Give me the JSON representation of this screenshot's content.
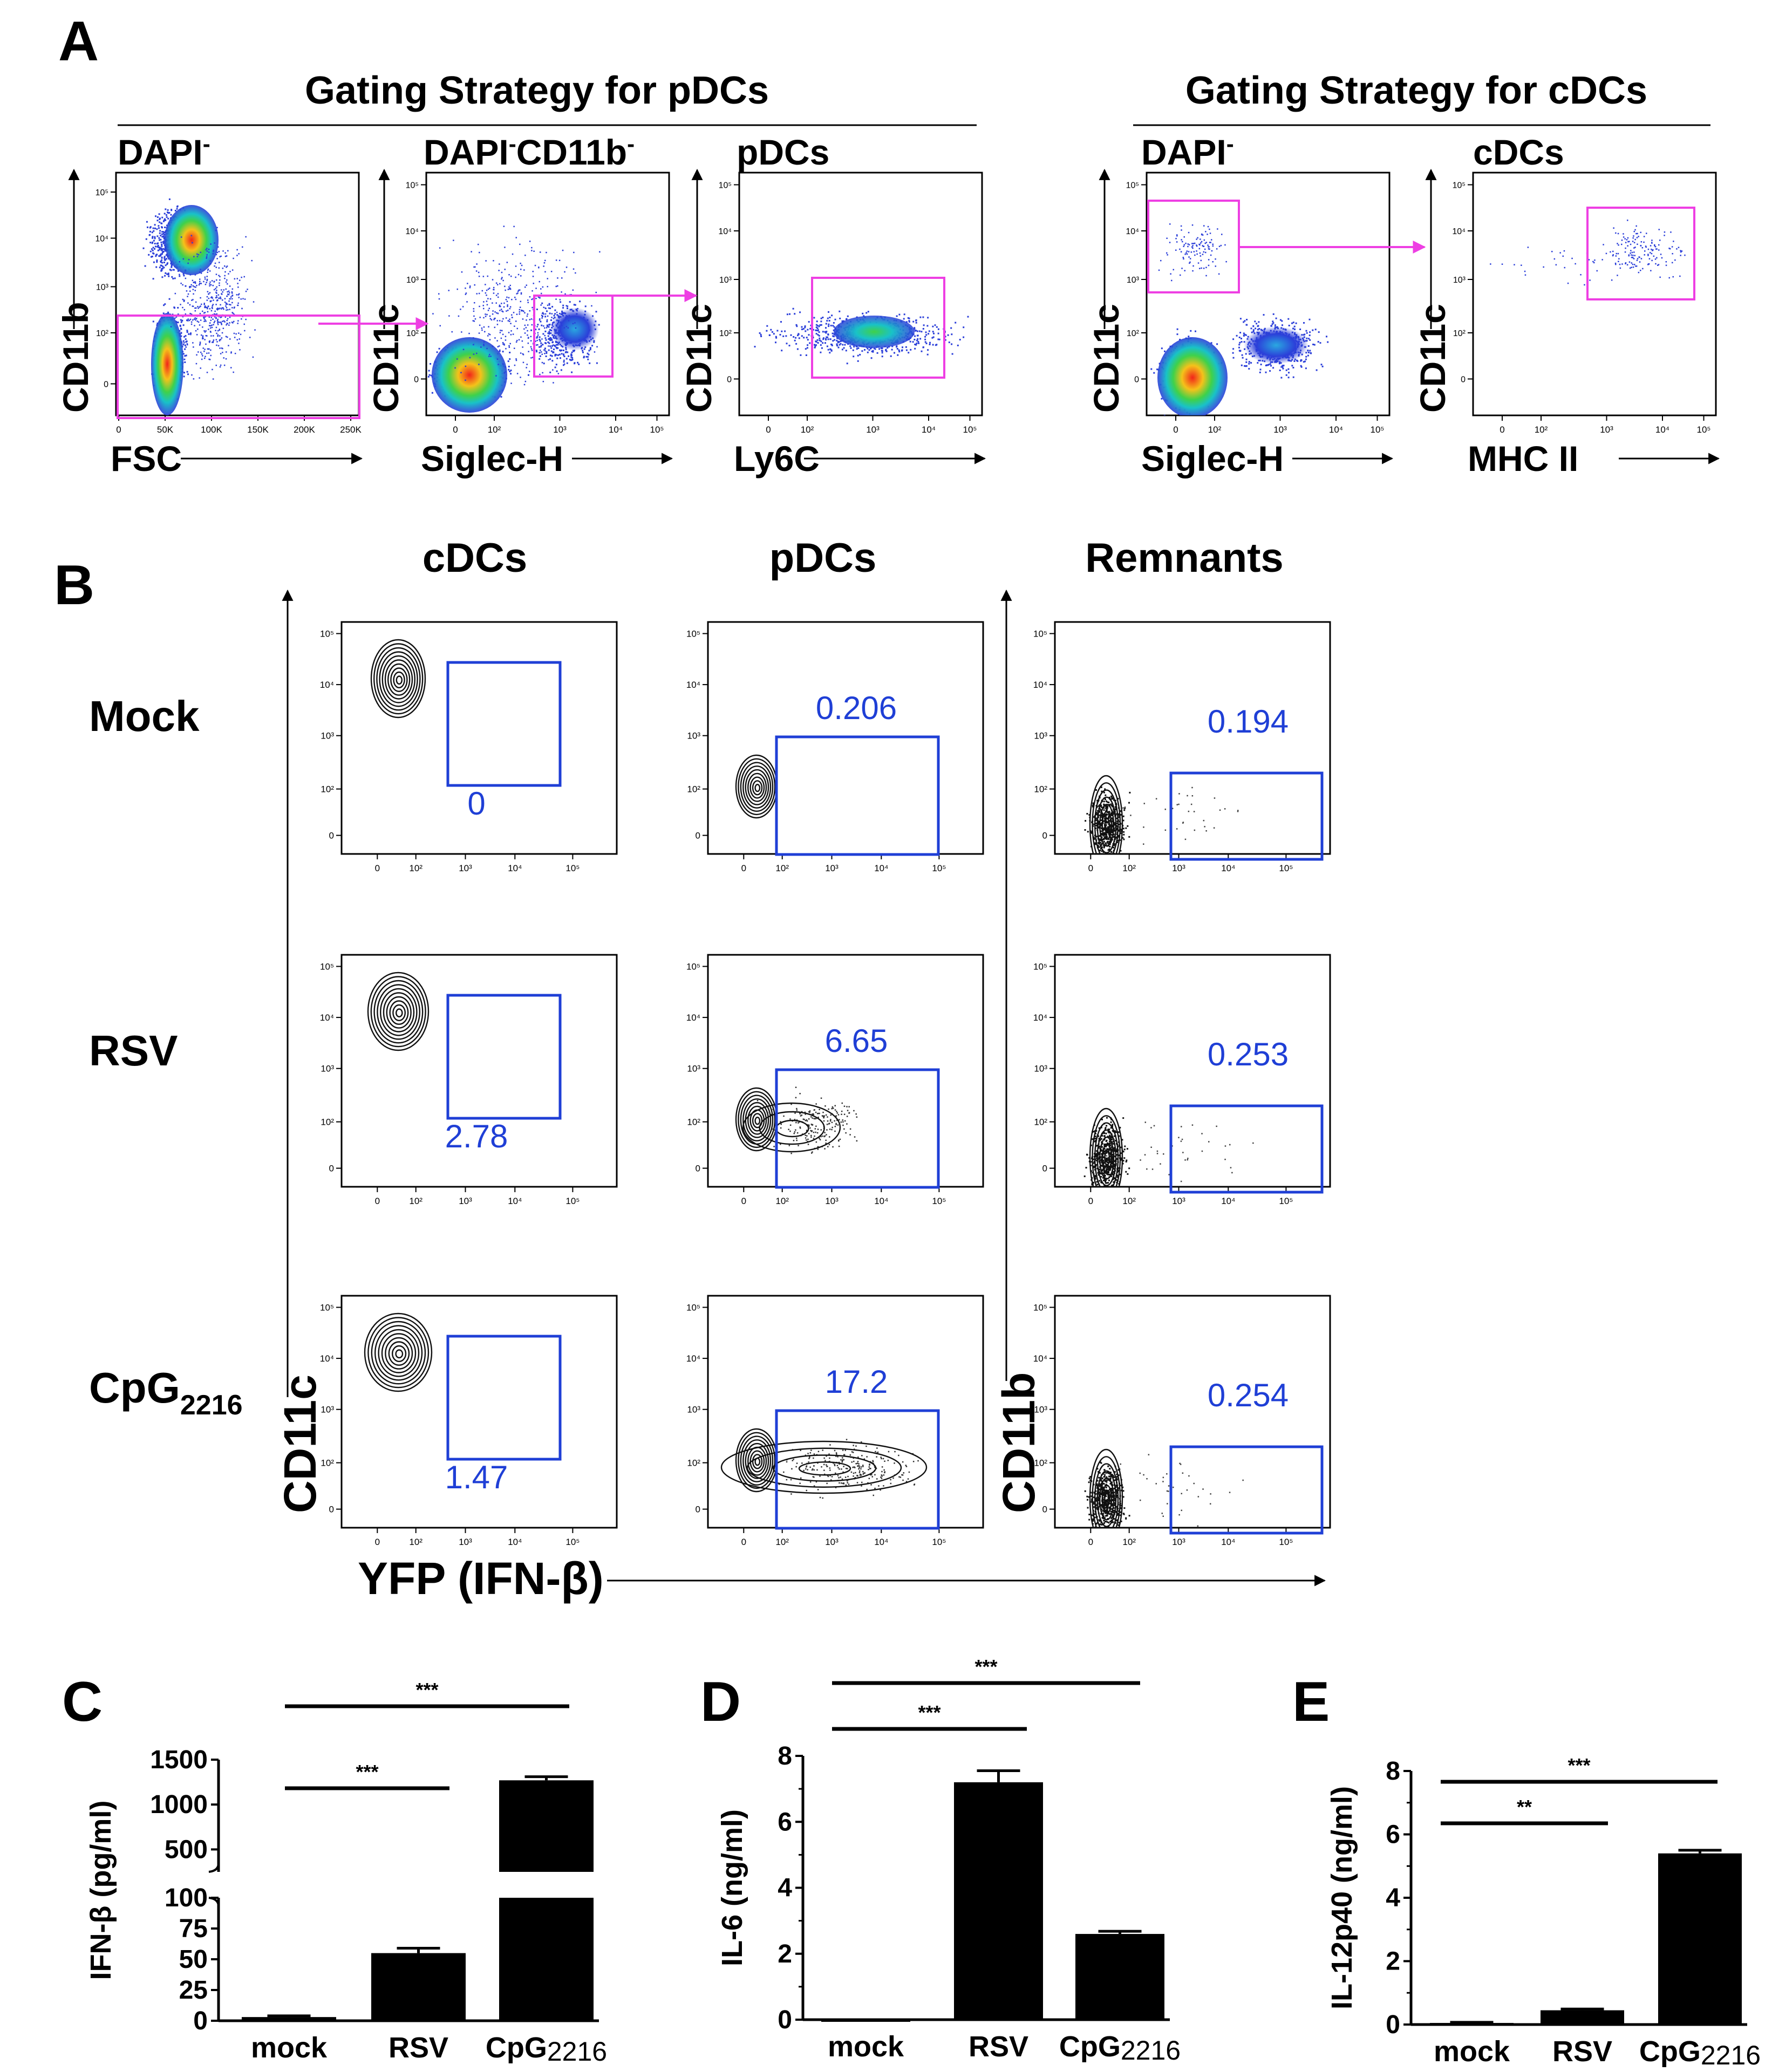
{
  "colors": {
    "gate_magenta": "#ee3fe3",
    "gate_blue": "#1f3fd6",
    "label_blue": "#1f3fd6",
    "bar": "#000000",
    "density_low": "#2b3fd9",
    "density_mid": "#19c2c8",
    "density_high": "#f2241a"
  },
  "panel_a": {
    "letter": "A",
    "pdc_header": "Gating Strategy for pDCs",
    "cdc_header": "Gating Strategy for cDCs",
    "plots": [
      {
        "title": "DAPI",
        "title_sup": "-",
        "title_rest": "",
        "rest_sup": "",
        "xlabel": "FSC",
        "ylabel": "CD11b",
        "xticks": [
          "0",
          "50K",
          "100K",
          "150K",
          "200K",
          "250K"
        ]
      },
      {
        "title": "DAPI",
        "title_sup": "-",
        "title_rest": "CD11b",
        "rest_sup": "-",
        "xlabel": "Siglec-H",
        "ylabel": "CD11c",
        "xticks": [
          "0",
          "10²",
          "10³",
          "10⁴",
          "10⁵"
        ]
      },
      {
        "title": "pDCs",
        "title_sup": "",
        "title_rest": "",
        "rest_sup": "",
        "xlabel": "Ly6C",
        "ylabel": "CD11c",
        "xticks": [
          "0",
          "10²",
          "10³",
          "10⁴",
          "10⁵"
        ]
      },
      {
        "title": "DAPI",
        "title_sup": "-",
        "title_rest": "",
        "rest_sup": "",
        "xlabel": "Siglec-H",
        "ylabel": "CD11c",
        "xticks": [
          "0",
          "10²",
          "10³",
          "10⁴",
          "10⁵"
        ]
      },
      {
        "title": "cDCs",
        "title_sup": "",
        "title_rest": "",
        "rest_sup": "",
        "xlabel": "MHC II",
        "ylabel": "CD11c",
        "xticks": [
          "0",
          "10²",
          "10³",
          "10⁴",
          "10⁵"
        ]
      }
    ],
    "yticks_log": [
      "10⁵",
      "10⁴",
      "10³",
      "10²",
      "0"
    ],
    "yticks_lin": [
      "10⁵",
      "10⁴",
      "10³",
      "10²",
      "0"
    ]
  },
  "panel_b": {
    "letter": "B",
    "columns": [
      "cDCs",
      "pDCs",
      "Remnants"
    ],
    "rows": [
      {
        "label": "Mock",
        "sub": ""
      },
      {
        "label": "RSV",
        "sub": ""
      },
      {
        "label": "CpG",
        "sub": "2216"
      }
    ],
    "gate_values": [
      [
        "0",
        "0.206",
        "0.194"
      ],
      [
        "2.78",
        "6.65",
        "0.253"
      ],
      [
        "1.47",
        "17.2",
        "0.254"
      ]
    ],
    "ylabel_left": "CD11c",
    "ylabel_right": "CD11b",
    "xlabel": "YFP (IFN-β)",
    "xticks": [
      "0",
      "10²",
      "10³",
      "10⁴",
      "10⁵"
    ],
    "yticks": [
      "10⁵",
      "10⁴",
      "10³",
      "10²",
      "0"
    ]
  },
  "chart_data": [
    {
      "panel": "C",
      "type": "bar",
      "categories": [
        "mock",
        "RSV",
        "CpG2216"
      ],
      "values": [
        3,
        55,
        1270
      ],
      "errors": [
        1,
        4,
        40
      ],
      "ylabel": "IFN-β (pg/ml)",
      "axis_break": true,
      "ylim_lower": [
        0,
        100
      ],
      "ylim_upper": [
        250,
        1500
      ],
      "yticks_lower": [
        "0",
        "25",
        "50",
        "75",
        "100"
      ],
      "yticks_upper": [
        "500",
        "1000",
        "1500"
      ],
      "significance": [
        {
          "from": 0,
          "to": 1,
          "label": "***"
        },
        {
          "from": 0,
          "to": 2,
          "label": "***"
        }
      ]
    },
    {
      "panel": "D",
      "type": "bar",
      "categories": [
        "mock",
        "RSV",
        "CpG2216"
      ],
      "values": [
        0,
        7.2,
        2.6
      ],
      "errors": [
        0,
        0.35,
        0.08
      ],
      "ylabel": "IL-6 (ng/ml)",
      "ylim": [
        0,
        8
      ],
      "yticks": [
        "0",
        "2",
        "4",
        "6",
        "8"
      ],
      "significance": [
        {
          "from": 0,
          "to": 1,
          "label": "***"
        },
        {
          "from": 0,
          "to": 2,
          "label": "***"
        }
      ]
    },
    {
      "panel": "E",
      "type": "bar",
      "categories": [
        "mock",
        "RSV",
        "CpG2216"
      ],
      "values": [
        0.05,
        0.45,
        5.4
      ],
      "errors": [
        0.02,
        0.04,
        0.1
      ],
      "ylabel": "IL-12p40 (ng/ml)",
      "ylim": [
        0,
        8
      ],
      "yticks": [
        "0",
        "2",
        "4",
        "6",
        "8"
      ],
      "significance": [
        {
          "from": 0,
          "to": 1,
          "label": "**"
        },
        {
          "from": 0,
          "to": 2,
          "label": "***"
        }
      ]
    }
  ],
  "bar_labels": {
    "cat_main": [
      "mock",
      "RSV",
      "CpG"
    ],
    "cat_sub": [
      "",
      "",
      "2216"
    ]
  }
}
